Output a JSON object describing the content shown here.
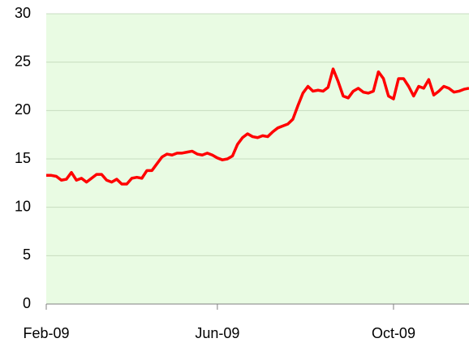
{
  "chart_data": {
    "type": "line",
    "categories": [
      "Feb-09",
      null,
      null,
      null,
      null,
      null,
      null,
      null,
      null,
      null,
      null,
      null,
      null,
      null,
      null,
      null,
      null,
      null,
      null,
      null,
      null,
      null,
      null,
      null,
      null,
      null,
      null,
      null,
      null,
      null,
      null,
      null,
      null,
      null,
      "Jun-09",
      null,
      null,
      null,
      null,
      null,
      null,
      null,
      null,
      null,
      null,
      null,
      null,
      null,
      null,
      null,
      null,
      null,
      null,
      null,
      null,
      null,
      null,
      null,
      null,
      null,
      null,
      null,
      null,
      null,
      null,
      null,
      null,
      null,
      null,
      "Oct-09",
      null,
      null,
      null,
      null,
      null,
      null,
      null,
      null,
      null,
      null,
      null,
      null,
      null,
      null,
      null
    ],
    "series": [
      {
        "color": "#ff0000",
        "values": [
          13.3,
          13.3,
          13.2,
          12.8,
          12.9,
          13.6,
          12.8,
          13.0,
          12.6,
          13.0,
          13.4,
          13.4,
          12.8,
          12.6,
          12.9,
          12.4,
          12.4,
          13.0,
          13.1,
          13.0,
          13.8,
          13.8,
          14.5,
          15.2,
          15.5,
          15.4,
          15.6,
          15.6,
          15.7,
          15.8,
          15.5,
          15.4,
          15.6,
          15.4,
          15.1,
          14.9,
          15.0,
          15.3,
          16.5,
          17.2,
          17.6,
          17.3,
          17.2,
          17.4,
          17.3,
          17.8,
          18.2,
          18.4,
          18.6,
          19.1,
          20.5,
          21.8,
          22.5,
          22.0,
          22.1,
          22.0,
          22.4,
          24.3,
          23.0,
          21.5,
          21.3,
          22.0,
          22.3,
          21.9,
          21.8,
          22.0,
          24.0,
          23.3,
          21.5,
          21.2,
          23.3,
          23.3,
          22.5,
          21.5,
          22.5,
          22.3,
          23.2,
          21.6,
          22.0,
          22.5,
          22.3,
          21.9,
          22.0,
          22.2,
          22.3
        ]
      }
    ],
    "ylim": [
      0,
      30
    ],
    "yticks": [
      0,
      5,
      10,
      15,
      20,
      25,
      30
    ],
    "grid": true,
    "background": "#e9fbe3"
  }
}
